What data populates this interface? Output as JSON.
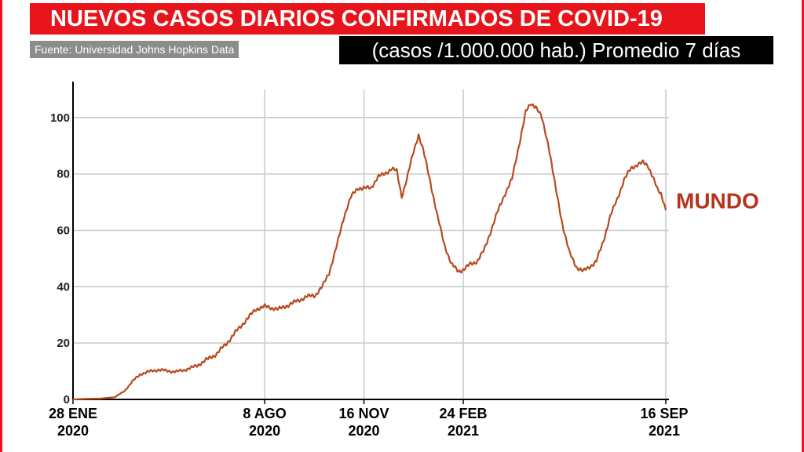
{
  "header": {
    "title": "NUEVOS CASOS DIARIOS CONFIRMADOS DE COVID-19",
    "source": "Fuente: Universidad Johns Hopkins Data",
    "subtitle": "(casos /1.000.000 hab.) Promedio 7 días"
  },
  "colors": {
    "accent": "#e8141b",
    "line": "#b84a1e",
    "label": "#b5341a",
    "grid": "#c8c8c8"
  },
  "chart_data": {
    "type": "line",
    "title": "NUEVOS CASOS DIARIOS CONFIRMADOS DE COVID-19",
    "subtitle": "(casos /1.000.000 hab.) Promedio 7 días",
    "ylim": [
      0,
      110
    ],
    "y_ticks": [
      0,
      20,
      40,
      60,
      80,
      100
    ],
    "x_range": [
      "2020-01-28",
      "2021-09-16"
    ],
    "x_ticks": [
      {
        "date": "2020-01-28",
        "line1": "28 ENE",
        "line2": "2020"
      },
      {
        "date": "2020-08-08",
        "line1": "8 AGO",
        "line2": "2020"
      },
      {
        "date": "2020-11-16",
        "line1": "16 NOV",
        "line2": "2020"
      },
      {
        "date": "2021-02-24",
        "line1": "24 FEB",
        "line2": "2021"
      },
      {
        "date": "2021-09-16",
        "line1": "16 SEP",
        "line2": "2021"
      }
    ],
    "grid": true,
    "series": [
      {
        "name": "MUNDO",
        "points": [
          [
            "2020-01-28",
            0
          ],
          [
            "2020-02-10",
            0.2
          ],
          [
            "2020-02-25",
            0.3
          ],
          [
            "2020-03-10",
            0.8
          ],
          [
            "2020-03-20",
            3
          ],
          [
            "2020-03-28",
            6.5
          ],
          [
            "2020-04-05",
            9
          ],
          [
            "2020-04-15",
            10
          ],
          [
            "2020-04-22",
            10.5
          ],
          [
            "2020-05-01",
            10.2
          ],
          [
            "2020-05-10",
            9.8
          ],
          [
            "2020-05-20",
            10.5
          ],
          [
            "2020-06-01",
            12
          ],
          [
            "2020-06-10",
            14
          ],
          [
            "2020-06-20",
            16
          ],
          [
            "2020-07-01",
            20
          ],
          [
            "2020-07-10",
            24
          ],
          [
            "2020-07-20",
            28
          ],
          [
            "2020-07-30",
            32
          ],
          [
            "2020-08-08",
            33
          ],
          [
            "2020-08-15",
            32.5
          ],
          [
            "2020-08-22",
            32
          ],
          [
            "2020-09-01",
            33.5
          ],
          [
            "2020-09-10",
            35
          ],
          [
            "2020-09-20",
            36.5
          ],
          [
            "2020-09-28",
            37
          ],
          [
            "2020-10-05",
            40
          ],
          [
            "2020-10-12",
            45
          ],
          [
            "2020-10-20",
            55
          ],
          [
            "2020-10-27",
            65
          ],
          [
            "2020-11-03",
            72
          ],
          [
            "2020-11-10",
            75
          ],
          [
            "2020-11-16",
            75
          ],
          [
            "2020-11-23",
            75
          ],
          [
            "2020-11-30",
            79
          ],
          [
            "2020-12-07",
            80
          ],
          [
            "2020-12-14",
            82
          ],
          [
            "2020-12-19",
            81
          ],
          [
            "2020-12-24",
            72
          ],
          [
            "2020-12-29",
            78
          ],
          [
            "2021-01-05",
            88
          ],
          [
            "2021-01-10",
            94
          ],
          [
            "2021-01-15",
            88
          ],
          [
            "2021-01-22",
            77
          ],
          [
            "2021-01-29",
            65
          ],
          [
            "2021-02-05",
            55
          ],
          [
            "2021-02-12",
            48
          ],
          [
            "2021-02-19",
            45.5
          ],
          [
            "2021-02-24",
            46
          ],
          [
            "2021-03-03",
            48
          ],
          [
            "2021-03-10",
            49
          ],
          [
            "2021-03-17",
            53
          ],
          [
            "2021-03-24",
            60
          ],
          [
            "2021-03-31",
            67
          ],
          [
            "2021-04-07",
            73
          ],
          [
            "2021-04-14",
            78
          ],
          [
            "2021-04-21",
            90
          ],
          [
            "2021-04-28",
            102
          ],
          [
            "2021-05-03",
            105
          ],
          [
            "2021-05-08",
            104
          ],
          [
            "2021-05-14",
            100
          ],
          [
            "2021-05-21",
            90
          ],
          [
            "2021-05-28",
            75
          ],
          [
            "2021-06-04",
            62
          ],
          [
            "2021-06-11",
            52
          ],
          [
            "2021-06-18",
            47
          ],
          [
            "2021-06-25",
            45.5
          ],
          [
            "2021-07-01",
            47
          ],
          [
            "2021-07-08",
            49
          ],
          [
            "2021-07-15",
            56
          ],
          [
            "2021-07-22",
            65
          ],
          [
            "2021-07-29",
            71
          ],
          [
            "2021-08-05",
            78
          ],
          [
            "2021-08-12",
            82
          ],
          [
            "2021-08-19",
            83.5
          ],
          [
            "2021-08-24",
            84
          ],
          [
            "2021-08-29",
            83
          ],
          [
            "2021-09-03",
            79
          ],
          [
            "2021-09-08",
            74
          ],
          [
            "2021-09-11",
            73
          ],
          [
            "2021-09-14",
            70
          ],
          [
            "2021-09-16",
            67.5
          ]
        ]
      }
    ]
  }
}
